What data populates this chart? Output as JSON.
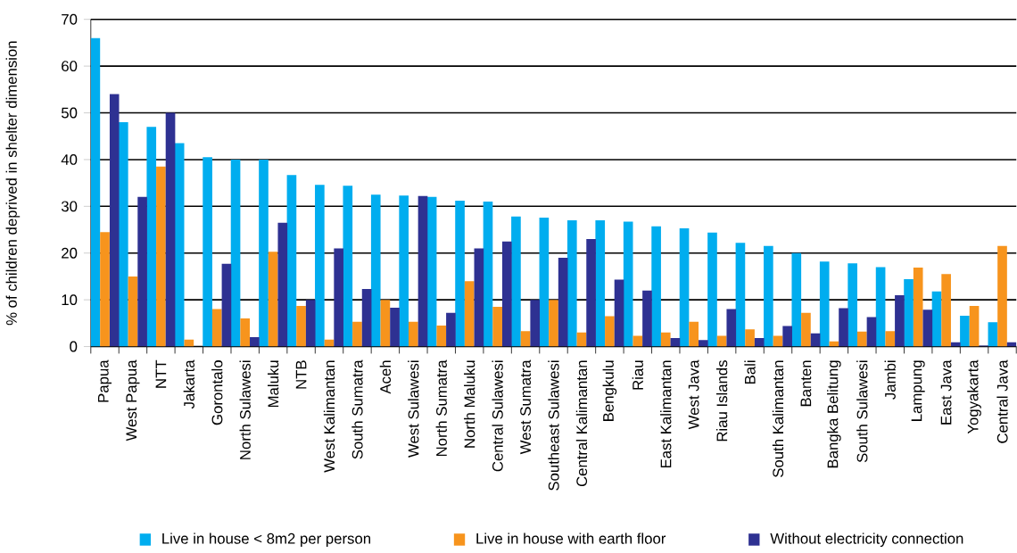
{
  "chart_data": {
    "type": "bar",
    "ylabel": "% of children deprived in shelter dimension",
    "categories": [
      "Papua",
      "West Papua",
      "NTT",
      "Jakarta",
      "Gorontalo",
      "North Sulawesi",
      "Maluku",
      "NTB",
      "West Kalimantan",
      "South Sumatra",
      "Aceh",
      "West Sulawesi",
      "North Sumatra",
      "North Maluku",
      "Central Sulawesi",
      "West Sumatra",
      "Southeast Sulawesi",
      "Central Kalimantan",
      "Bengkulu",
      "Riau",
      "East Kalimantan",
      "West Java",
      "Riau Islands",
      "Bali",
      "South Kalimantan",
      "Banten",
      "Bangka Belitung",
      "South Sulawesi",
      "Jambi",
      "Lampung",
      "East Java",
      "Yogyakarta",
      "Central Java"
    ],
    "series": [
      {
        "name": "Live in house < 8m2 per person",
        "color": "#00adef",
        "values": [
          66,
          48,
          47,
          43.5,
          40.5,
          40,
          40,
          36.7,
          34.6,
          34.4,
          32.5,
          32.3,
          32,
          31.2,
          31,
          27.8,
          27.6,
          27,
          27,
          26.7,
          25.7,
          25.3,
          24.4,
          22.2,
          21.5,
          20,
          18.2,
          17.8,
          17,
          14.4,
          11.8,
          6.6,
          5.2
        ]
      },
      {
        "name": "Live in house with earth floor",
        "color": "#f7941d",
        "values": [
          24.5,
          15,
          38.5,
          1.5,
          8,
          6,
          20.3,
          8.7,
          1.5,
          5.3,
          10,
          5.3,
          4.5,
          14,
          8.5,
          3.3,
          10,
          3,
          6.5,
          2.3,
          3,
          5.3,
          2.3,
          3.7,
          2.3,
          7.2,
          1.1,
          3.2,
          3.3,
          16.9,
          15.5,
          8.7,
          21.5
        ]
      },
      {
        "name": "Without electricity connection",
        "color": "#2e3192",
        "values": [
          54,
          32,
          50,
          0,
          17.7,
          2,
          26.5,
          10,
          21,
          12.3,
          8.3,
          32.2,
          7.2,
          21,
          22.5,
          10,
          19,
          23,
          14.3,
          12,
          1.8,
          1.4,
          8,
          1.8,
          4.4,
          2.8,
          8.2,
          6.3,
          11,
          7.9,
          0.9,
          0.2,
          0.9
        ]
      }
    ],
    "ylim": [
      0,
      70
    ],
    "yticks": [
      0,
      10,
      20,
      30,
      40,
      50,
      60,
      70
    ],
    "grid": "y",
    "legend": "bottom"
  }
}
